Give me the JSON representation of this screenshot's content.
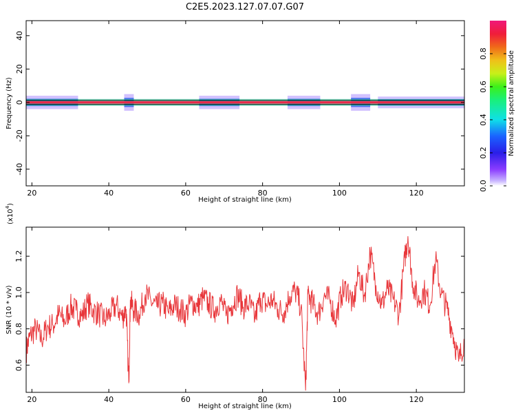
{
  "title": "C2E5.2023.127.07.07.G07",
  "chart_data": [
    {
      "type": "heatmap",
      "xlabel": "Height of straight line (km)",
      "ylabel": "Frequency (Hz)",
      "xlim": [
        18.5,
        132.5
      ],
      "ylim": [
        -50,
        49
      ],
      "xticks": [
        20,
        40,
        60,
        80,
        100,
        120
      ],
      "yticks": [
        -40,
        -20,
        0,
        20,
        40
      ],
      "colorbar": {
        "label": "Normalized spectral amplitude",
        "range": [
          0,
          1
        ],
        "ticks": [
          "0.0",
          "0.2",
          "0.4",
          "0.6",
          "0.8"
        ]
      },
      "ridge_frequency_hz": 0,
      "spread_segments": [
        {
          "x": [
            18.5,
            32
          ],
          "width_hz": 4
        },
        {
          "x": [
            44,
            46.5
          ],
          "width_hz": 5
        },
        {
          "x": [
            63.5,
            74
          ],
          "width_hz": 4
        },
        {
          "x": [
            86.5,
            95
          ],
          "width_hz": 4
        },
        {
          "x": [
            103,
            108
          ],
          "width_hz": 5
        },
        {
          "x": [
            110,
            132.5
          ],
          "width_hz": 3.5
        }
      ],
      "colors": {
        "ridge": "#e8294a",
        "core": "#22d3a0",
        "mid": "#1d4de8",
        "halo": "#c9b6ff"
      }
    },
    {
      "type": "line",
      "xlabel": "Height of straight line (km)",
      "ylabel": "SNR (10 * v/v)",
      "scale_label": "(x10",
      "scale_exp": "4",
      "scale_close": ")",
      "xlim": [
        18.5,
        132.5
      ],
      "ylim": [
        4500,
        13600
      ],
      "xticks": [
        20,
        40,
        60,
        80,
        100,
        120
      ],
      "yticks": [
        6000,
        8000,
        10000,
        12000
      ],
      "ytick_labels": [
        "0.6",
        "0.8",
        "1.0",
        "1.2"
      ],
      "series": [
        {
          "color": "#e8363a",
          "x": [
            18.5,
            19.5,
            21,
            22.5,
            24,
            25.5,
            27,
            28.5,
            30,
            31.5,
            33,
            34.5,
            36,
            37.5,
            39,
            40.5,
            42,
            43.5,
            44.5,
            45.2,
            45.6,
            46.5,
            48,
            49.5,
            51,
            52.5,
            54,
            55.5,
            57,
            58.5,
            60,
            61.5,
            63,
            64.5,
            66,
            67.5,
            69,
            70.5,
            72,
            73.5,
            75,
            76.5,
            78,
            79.5,
            81,
            82.5,
            84,
            85.5,
            87,
            88.5,
            90,
            91.2,
            91.8,
            93,
            94.5,
            96,
            97.5,
            99,
            100.5,
            102,
            103.5,
            105,
            106.5,
            108,
            109.5,
            111,
            112.5,
            114,
            115.5,
            117,
            117.8,
            119,
            120.5,
            122,
            123.5,
            125,
            126.5,
            128,
            129.5,
            131,
            132.5
          ],
          "y": [
            6800,
            7600,
            8000,
            7400,
            8100,
            8200,
            8800,
            8400,
            9200,
            9000,
            8700,
            9400,
            9000,
            8800,
            8500,
            8900,
            9300,
            8600,
            9100,
            5000,
            9600,
            9000,
            8800,
            9900,
            9500,
            9200,
            9400,
            8900,
            9300,
            9100,
            8800,
            9500,
            9200,
            9700,
            9400,
            9000,
            9600,
            8700,
            9300,
            9900,
            9200,
            9400,
            8600,
            9700,
            9300,
            9600,
            9100,
            8900,
            9800,
            10100,
            9200,
            4600,
            9900,
            9400,
            8800,
            9800,
            9600,
            8500,
            9900,
            10300,
            9200,
            11100,
            9800,
            12200,
            10400,
            9300,
            10200,
            9600,
            8800,
            11900,
            13100,
            10600,
            9500,
            10100,
            9300,
            11800,
            9900,
            9100,
            7800,
            6200,
            7400
          ]
        }
      ]
    }
  ]
}
